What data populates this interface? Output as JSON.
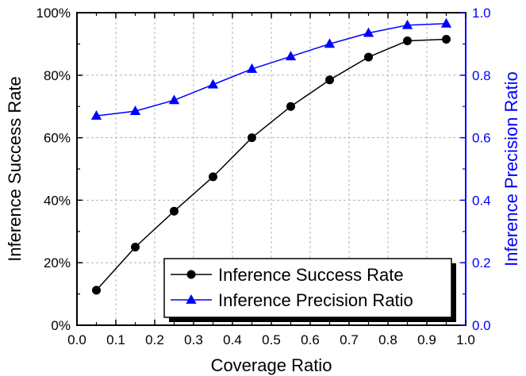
{
  "chart_data": {
    "type": "line",
    "xlabel": "Coverage Ratio",
    "ylabel": "Inference Success Rate",
    "y2label": "Inference Precision Ratio",
    "xlim": [
      0.0,
      1.0
    ],
    "ylim": [
      0,
      100
    ],
    "y2lim": [
      0.0,
      1.0
    ],
    "x_ticks": [
      "0.0",
      "0.1",
      "0.2",
      "0.3",
      "0.4",
      "0.5",
      "0.6",
      "0.7",
      "0.8",
      "0.9",
      "1.0"
    ],
    "y_ticks": [
      "0%",
      "20%",
      "40%",
      "60%",
      "80%",
      "100%"
    ],
    "y2_ticks": [
      "0.0",
      "0.2",
      "0.4",
      "0.6",
      "0.8",
      "1.0"
    ],
    "grid": true,
    "legend_position": "bottom-right",
    "colors": {
      "left_axis": "#000000",
      "right_axis": "#0000ff"
    },
    "x": [
      0.05,
      0.15,
      0.25,
      0.35,
      0.45,
      0.55,
      0.65,
      0.75,
      0.85,
      0.95
    ],
    "series": [
      {
        "name": "Inference Success Rate",
        "axis": "left",
        "marker": "circle",
        "color": "#000000",
        "values": [
          11.2,
          25.0,
          36.5,
          47.5,
          60.0,
          70.0,
          78.5,
          85.8,
          91.0,
          91.5
        ]
      },
      {
        "name": "Inference Precision Ratio",
        "axis": "right",
        "marker": "triangle",
        "color": "#0000ff",
        "values": [
          0.67,
          0.685,
          0.72,
          0.77,
          0.82,
          0.86,
          0.9,
          0.935,
          0.96,
          0.965
        ]
      }
    ]
  }
}
